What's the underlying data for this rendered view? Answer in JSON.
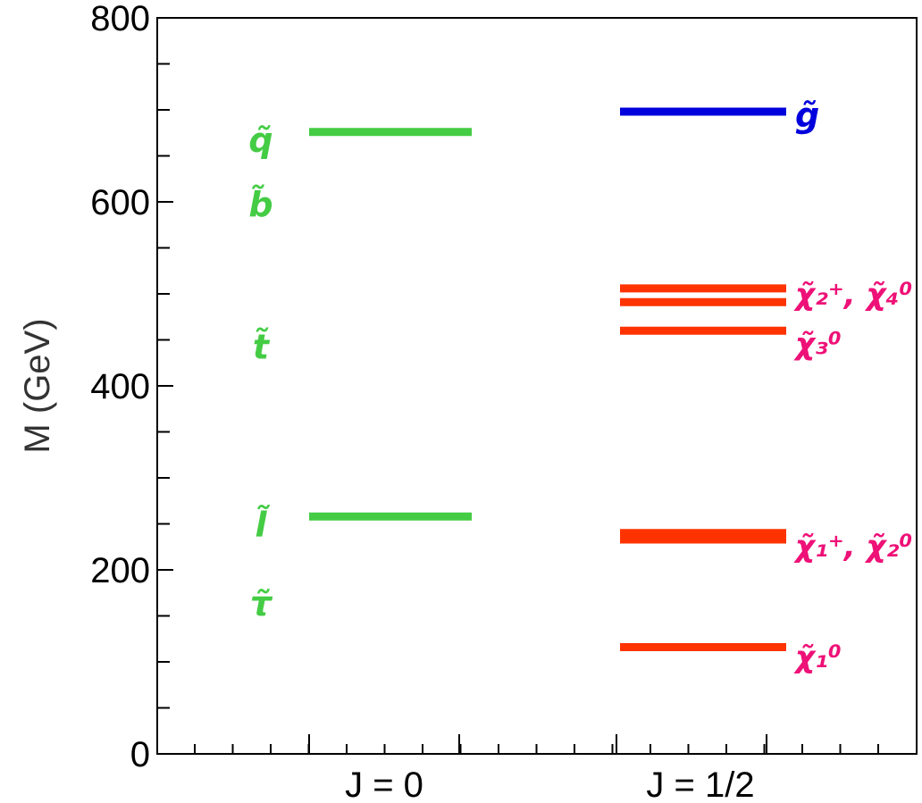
{
  "chart_data": {
    "type": "level-diagram",
    "title": "",
    "xlabel": "",
    "ylabel": "M (GeV)",
    "ylim": [
      0,
      800
    ],
    "y_ticks": [
      {
        "value": 0,
        "label": "0"
      },
      {
        "value": 200,
        "label": "200"
      },
      {
        "value": 400,
        "label": "400"
      },
      {
        "value": 600,
        "label": "600"
      },
      {
        "value": 800,
        "label": "800"
      }
    ],
    "categories": [
      "J = 0",
      "J = 1/2"
    ],
    "colors": {
      "scalar": "#44cc44",
      "gluino": "#0000dd",
      "neutralino": "#ff3300",
      "label_magenta": "#ee1177"
    },
    "levels": [
      {
        "category": "J = 0",
        "mass": 676,
        "color": "#44cc44"
      },
      {
        "category": "J = 0",
        "mass": 258,
        "color": "#44cc44"
      },
      {
        "category": "J = 1/2",
        "mass": 698,
        "color": "#0000dd"
      },
      {
        "category": "J = 1/2",
        "mass": 506,
        "color": "#ff3300"
      },
      {
        "category": "J = 1/2",
        "mass": 491,
        "color": "#ff3300"
      },
      {
        "category": "J = 1/2",
        "mass": 460,
        "color": "#ff3300"
      },
      {
        "category": "J = 1/2",
        "mass": 240,
        "color": "#ff3300"
      },
      {
        "category": "J = 1/2",
        "mass": 233,
        "color": "#ff3300"
      },
      {
        "category": "J = 1/2",
        "mass": 116,
        "color": "#ff3300"
      }
    ],
    "labels": [
      {
        "text": "q̃",
        "mass": 668,
        "side": "left",
        "color": "#44cc44"
      },
      {
        "text": "b̃",
        "mass": 598,
        "side": "left",
        "color": "#44cc44"
      },
      {
        "text": "t̃",
        "mass": 443,
        "side": "left",
        "color": "#44cc44"
      },
      {
        "text": "l̃",
        "mass": 250,
        "side": "left",
        "color": "#44cc44"
      },
      {
        "text": "τ̃",
        "mass": 164,
        "side": "left",
        "color": "#44cc44"
      },
      {
        "text": "g̃",
        "mass": 695,
        "side": "right",
        "color": "#0000dd"
      },
      {
        "text": "χ̃₂⁺, χ̃₄⁰",
        "mass": 502,
        "side": "right",
        "color": "#ee1177"
      },
      {
        "text": "χ̃₃⁰",
        "mass": 448,
        "side": "right",
        "color": "#ee1177"
      },
      {
        "text": "χ̃₁⁺, χ̃₂⁰",
        "mass": 228,
        "side": "right",
        "color": "#ee1177"
      },
      {
        "text": "χ̃₁⁰",
        "mass": 108,
        "side": "right",
        "color": "#ee1177"
      }
    ]
  }
}
